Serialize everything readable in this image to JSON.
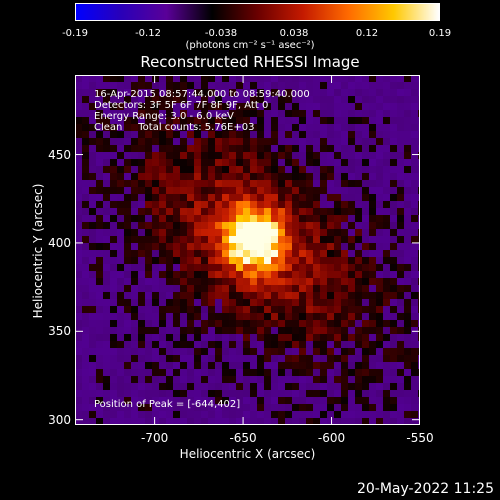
{
  "colorbar": {
    "ticks": [
      "-0.19",
      "-0.12",
      "-0.038",
      "0.038",
      "0.12",
      "0.19"
    ],
    "units_label": "(photons cm⁻² s⁻¹ asec⁻²)",
    "gradient": [
      "#0000ff",
      "#2a00b8",
      "#5a0098",
      "#000000",
      "#6a0000",
      "#c41a00",
      "#ff6a00",
      "#ffc800",
      "#ffffff"
    ]
  },
  "chart_data": {
    "type": "heatmap",
    "title": "Reconstructed RHESSI Image",
    "xlabel": "Heliocentric X (arcsec)",
    "ylabel": "Heliocentric Y (arcsec)",
    "xlim": [
      -745,
      -550
    ],
    "ylim": [
      297,
      495
    ],
    "x_ticks": [
      "-700",
      "-650",
      "-600",
      "-550"
    ],
    "x_tick_values": [
      -700,
      -650,
      -600,
      -550
    ],
    "y_ticks": [
      "300",
      "350",
      "400",
      "450"
    ],
    "y_tick_values": [
      300,
      350,
      400,
      450
    ],
    "peak": [
      -644,
      402
    ],
    "annotations": [
      "16-Apr-2015 08:57:44.000 to 08:59:40.000",
      "Detectors: 3F 5F 6F 7F 8F 9F, Att 0",
      "Energy Range: 3.0 - 6.0 keV",
      "Clean     Total counts: 5.76E+03"
    ],
    "peak_label": "Position of Peak = [-644,402]"
  },
  "footer": {
    "date": "20-May-2022 11:25"
  }
}
